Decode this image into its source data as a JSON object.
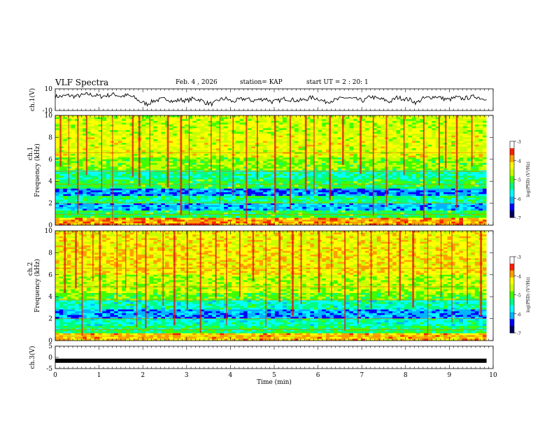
{
  "header": {
    "title": "VLF Spectra",
    "date": "Feb. 4 , 2026",
    "station": "station= KAP",
    "start": "start  UT =   2 : 20: 1"
  },
  "chart_data": [
    {
      "type": "line",
      "name": "ch1-waveform",
      "ylabel": "ch.1(V)",
      "ylim": [
        -10,
        10
      ],
      "yticks": [
        "10",
        "-10"
      ],
      "xlim": [
        0,
        9.85
      ],
      "x_step_min": 0.15,
      "values": [
        3,
        3,
        4,
        3,
        4,
        5,
        4,
        3,
        4,
        5,
        3,
        4,
        2,
        -2,
        -4,
        -1,
        0,
        1,
        -2,
        0,
        -1,
        1,
        0,
        -3,
        -4,
        0,
        1,
        -2,
        0,
        1,
        -1,
        0,
        1,
        -2,
        -1,
        1,
        0,
        -1,
        0,
        2,
        1,
        -2,
        -1,
        0,
        2,
        1,
        0,
        -1,
        3,
        1,
        0,
        -2,
        2,
        1,
        0,
        -3,
        1,
        2,
        3,
        1,
        0,
        2,
        1,
        2,
        3,
        1,
        2,
        3,
        0,
        2,
        3,
        1
      ]
    },
    {
      "type": "heatmap",
      "name": "ch1-spectrogram",
      "ylabel_top": "ch.1",
      "ylabel": "Frequency (kHz)",
      "ylim": [
        0,
        10
      ],
      "yticks": [
        "0",
        "2",
        "4",
        "6",
        "8",
        "10"
      ],
      "xlim": [
        0,
        9.85
      ],
      "bands": [
        {
          "from": 0,
          "to": 0.6,
          "level": -3.6
        },
        {
          "from": 0.6,
          "to": 1.4,
          "level": -5.0
        },
        {
          "from": 1.4,
          "to": 2.0,
          "level": -5.9
        },
        {
          "from": 2.0,
          "to": 2.6,
          "level": -5.2
        },
        {
          "from": 2.6,
          "to": 3.4,
          "level": -6.1
        },
        {
          "from": 3.4,
          "to": 4.2,
          "level": -5.0
        },
        {
          "from": 4.2,
          "to": 5.0,
          "level": -5.3
        },
        {
          "from": 5.0,
          "to": 6.2,
          "level": -4.6
        },
        {
          "from": 6.2,
          "to": 8.2,
          "level": -4.2
        },
        {
          "from": 8.2,
          "to": 10.0,
          "level": -4.3
        }
      ],
      "bursts_min": [
        0.1,
        0.3,
        0.5,
        0.7,
        1.05,
        1.3,
        1.75,
        1.9,
        2.15,
        2.55,
        2.85,
        3.05,
        3.55,
        3.75,
        4.05,
        4.35,
        4.6,
        5.0,
        5.35,
        5.7,
        5.9,
        6.25,
        6.55,
        6.95,
        7.25,
        7.55,
        7.95,
        8.4,
        8.75,
        8.9,
        9.15,
        9.5
      ]
    },
    {
      "type": "heatmap",
      "name": "ch2-spectrogram",
      "ylabel_top": "ch.2",
      "ylabel": "Frequency (kHz)",
      "ylim": [
        0,
        10
      ],
      "yticks": [
        "0",
        "2",
        "4",
        "6",
        "8",
        "10"
      ],
      "xlim": [
        0,
        9.85
      ],
      "bands": [
        {
          "from": 0,
          "to": 0.6,
          "level": -3.8
        },
        {
          "from": 0.6,
          "to": 1.4,
          "level": -5.1
        },
        {
          "from": 1.4,
          "to": 2.0,
          "level": -5.4
        },
        {
          "from": 2.0,
          "to": 2.8,
          "level": -6.0
        },
        {
          "from": 2.8,
          "to": 3.6,
          "level": -5.4
        },
        {
          "from": 3.6,
          "to": 4.4,
          "level": -4.7
        },
        {
          "from": 4.4,
          "to": 6.0,
          "level": -4.4
        },
        {
          "from": 6.0,
          "to": 8.6,
          "level": -4.0
        },
        {
          "from": 8.6,
          "to": 10.0,
          "level": -4.1
        }
      ],
      "bursts_min": [
        0.2,
        0.45,
        0.6,
        0.85,
        1.0,
        1.4,
        1.6,
        1.85,
        2.05,
        2.45,
        2.7,
        3.0,
        3.3,
        3.65,
        3.9,
        4.2,
        4.5,
        4.8,
        5.1,
        5.4,
        5.6,
        6.0,
        6.3,
        6.6,
        6.9,
        7.2,
        7.6,
        7.85,
        8.15,
        8.5,
        8.8,
        9.05,
        9.4,
        9.7
      ]
    },
    {
      "type": "line",
      "name": "ch3-waveform",
      "ylabel": "ch.3(V)",
      "ylim": [
        -5,
        5
      ],
      "yticks": [
        "5",
        "0",
        "-5"
      ],
      "xlim": [
        0,
        9.85
      ],
      "level": -1.5,
      "xlabel": "Time (min)",
      "xticks": [
        "0",
        "1",
        "2",
        "3",
        "4",
        "5",
        "6",
        "7",
        "8",
        "9",
        "10"
      ],
      "xrange": [
        0,
        10
      ]
    },
    {
      "type": "heatmap",
      "name": "colorbar",
      "unit_label": "log(PSD) (V²/Hz)",
      "range": [
        -7,
        -3
      ],
      "ticks": [
        "-3",
        "-4",
        "-5",
        "-6",
        "-7"
      ],
      "colors": [
        "#000060",
        "#0000ff",
        "#00b4ff",
        "#00ffff",
        "#00ff80",
        "#40ff00",
        "#c8ff00",
        "#ffff00",
        "#ffa000",
        "#ff2000",
        "#ffffff"
      ]
    }
  ]
}
